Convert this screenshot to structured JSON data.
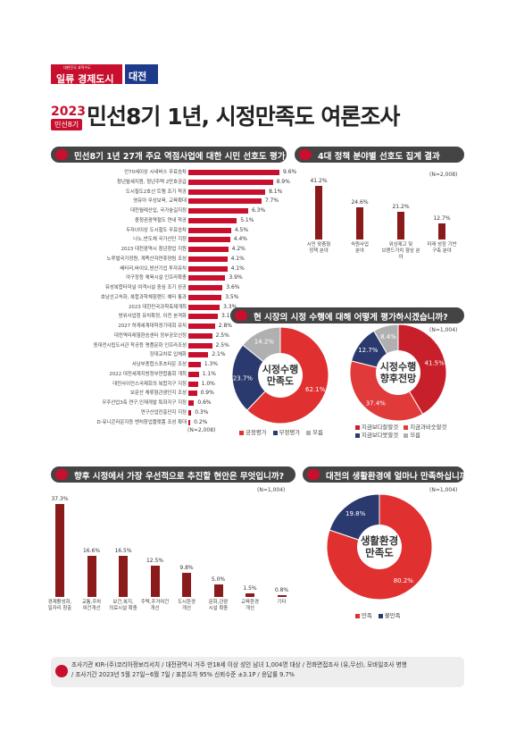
{
  "logo": {
    "small": "대한민국 과학수도",
    "main": "일류 경제도시",
    "city": "대전"
  },
  "header": {
    "year": "2023",
    "badge": "민선8기",
    "title": "민선8기 1년, 시정만족도 여론조사"
  },
  "section1": {
    "title": "민선8기 1년 27개 주요 역점사업에 대한 시민 선호도 평가 결과",
    "note": "(N=2,008)",
    "chart_data": {
      "type": "bar",
      "categories": [
        "안70세이상 시내버스 무료승차",
        "청년월세지원, 청년주택 2만호공급",
        "도시철도2호선 트램 조기 착공",
        "영유아 무상보육, 교육확대",
        "대전월례산입, 국가숲길지정",
        "충청권광역철도 연내 착공",
        "두자녀이상 도시철도 무료승차",
        "나노,반도체 국가산단 지정",
        "2023 대전광역시 청년창업 지원",
        "노루벌국가정원, 계족산자연휴양림 조성",
        "배터리,바이오,방산기업 투자유치",
        "야구장등 체육시설 인프라확충",
        "유성복합터미널 여객시설 중심 조기 완공",
        "호남선고속화, 복합과학체험랜드 예타 통과",
        "2023 대한민국과학축제개최",
        "방위사업청 유치확정, 이전 본격화",
        "2027 하계세계대학경기대회 유치",
        "대전역미래형환승센터 정부공모선정",
        "동대전시립도서관 착공등 명품문화 인프라조성",
        "장대교차로 입체화",
        "서남부종합스포츠타운 조성",
        "2022 대전세계지방정부연합총회 개최",
        "대전사이언스국제회의 복합지구 지정",
        "보문산 체류형관광단지 조성",
        "우주산업3축 연구,인재개발 특화지구 지정",
        "연구산업진흥단지 지정",
        "D-유니콘라운지등 벤처창업플랫폼 조성 확대"
      ],
      "values": [
        9.6,
        8.9,
        8.1,
        7.7,
        6.3,
        5.1,
        4.5,
        4.4,
        4.2,
        4.1,
        4.1,
        3.9,
        3.6,
        3.5,
        3.3,
        3.1,
        2.8,
        2.5,
        2.5,
        2.1,
        1.3,
        1.1,
        1.0,
        0.9,
        0.6,
        0.3,
        0.2
      ],
      "labels": [
        "9.6%",
        "8.9%",
        "8.1%",
        "7.7%",
        "6.3%",
        "5.1%",
        "4.5%",
        "4.4%",
        "4.2%",
        "4.1%",
        "4.1%",
        "3.9%",
        "3.6%",
        "3.5%",
        "3.3%",
        "3.1%",
        "2.8%",
        "2.5%",
        "2.5%",
        "2.1%",
        "1.3%",
        "1.1%",
        "1.0%",
        "0.9%",
        "0.6%",
        "0.3%",
        "0.2%"
      ]
    }
  },
  "section2": {
    "title": "4대 정책 분야별 선호도 집계 결과",
    "note": "(N=2,008)",
    "chart_data": {
      "type": "bar",
      "categories": [
        "시민 맞춤형\n정책 분야",
        "숙원사업\n분야",
        "위상제고 및\n브랜드가치 향상 분야",
        "미래 성장 기반\n구축 분야"
      ],
      "values": [
        41.2,
        24.6,
        21.2,
        12.7
      ],
      "labels": [
        "41.2%",
        "24.6%",
        "21.2%",
        "12.7%"
      ]
    }
  },
  "section3": {
    "title": "현 시장의 시정 수행에 대해 어떻게 평가하시겠습니까?",
    "note": "(N=1,004)",
    "pie1": {
      "center": "시정수행\n만족도",
      "chart_data": {
        "type": "pie",
        "categories": [
          "긍정평가",
          "부정평가",
          "모름"
        ],
        "values": [
          62.1,
          23.7,
          14.2
        ],
        "labels": [
          "62.1%",
          "23.7%",
          "14.2%"
        ],
        "colors": [
          "#e03030",
          "#2a3a6e",
          "#b0b0b0"
        ]
      }
    },
    "pie2": {
      "center": "시정수행\n향후전망",
      "chart_data": {
        "type": "pie",
        "categories": [
          "지금보다잘할것",
          "지금과비슷할것",
          "지금보다못할것",
          "모름"
        ],
        "values": [
          41.5,
          37.4,
          12.7,
          8.4
        ],
        "labels": [
          "41.5%",
          "37.4%",
          "12.7%",
          "8.4%"
        ],
        "colors": [
          "#c8202a",
          "#e03a3a",
          "#2a3a6e",
          "#b0b0b0"
        ]
      }
    }
  },
  "section4": {
    "title": "향후 시정에서 가장 우선적으로 추진할 현안은 무엇입니까?",
    "note": "(N=1,004)",
    "chart_data": {
      "type": "bar",
      "categories": [
        "경제활성화,\n일자리 창출",
        "교통,주차\n여건개선",
        "보건,복지,\n의료시설 확충",
        "주택,주거여건\n개선",
        "도시환경\n개선",
        "문화,관광\n시설 확충",
        "교육환경\n개선",
        "기타"
      ],
      "values": [
        37.3,
        16.6,
        16.5,
        12.5,
        9.8,
        5.0,
        1.5,
        0.8
      ],
      "labels": [
        "37.3%",
        "16.6%",
        "16.5%",
        "12.5%",
        "9.8%",
        "5.0%",
        "1.5%",
        "0.8%"
      ]
    }
  },
  "section5": {
    "title": "대전의 생활환경에 얼마나 만족하십니까?",
    "note": "(N=1,004)",
    "pie": {
      "center": "생활환경\n만족도",
      "chart_data": {
        "type": "pie",
        "categories": [
          "만족",
          "불만족"
        ],
        "values": [
          80.2,
          19.8
        ],
        "labels": [
          "80.2%",
          "19.8%"
        ],
        "colors": [
          "#e03030",
          "#2a3a6e"
        ]
      }
    }
  },
  "footer": {
    "line1": "조사기관 KIR-(주)코리아정보리서치 / 대전광역시 거주 만18세 이상 성인 남녀 1,004명 대상 / 전화면접조사 (유,무선), 모바일조사 병행",
    "line2": "/ 조사기간 2023년 5월 27일~6월 7일 / 표본오차 95% 신뢰수준 ±3.1P / 응답률 9.7%"
  }
}
